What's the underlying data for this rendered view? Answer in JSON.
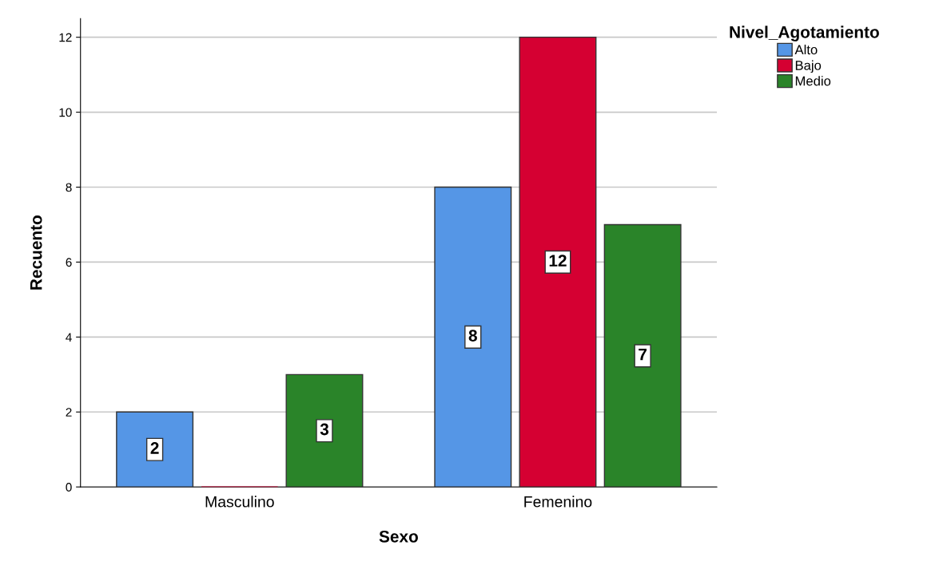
{
  "chart_data": {
    "type": "bar",
    "xlabel": "Sexo",
    "ylabel": "Recuento",
    "legend_title": "Nivel_Agotamiento",
    "categories": [
      "Masculino",
      "Femenino"
    ],
    "series": [
      {
        "name": "Alto",
        "color": "#5596e6",
        "values": [
          2,
          8
        ],
        "value_labels": [
          "2",
          "8"
        ]
      },
      {
        "name": "Bajo",
        "color": "#d50032",
        "values": [
          0,
          12
        ],
        "value_labels": [
          null,
          "12"
        ]
      },
      {
        "name": "Medio",
        "color": "#2a8429",
        "values": [
          3,
          7
        ],
        "value_labels": [
          "3",
          "7"
        ]
      }
    ],
    "ylim": [
      0,
      12.5
    ],
    "yticks": [
      0,
      2,
      4,
      6,
      8,
      10,
      12
    ],
    "grid": "y",
    "legend": "top right"
  }
}
